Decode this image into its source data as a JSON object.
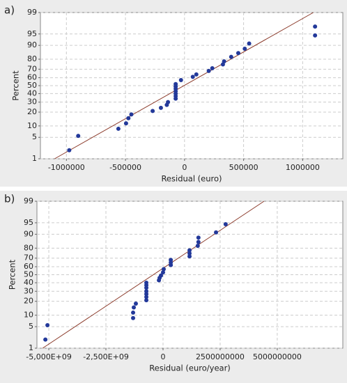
{
  "chart_data": [
    {
      "type": "scatter",
      "panel_label": "a)",
      "x_label": "Residual (euro)",
      "y_label": "Percent",
      "yscale": "probability",
      "grid": true,
      "color": "#23399a",
      "xlim": [
        -1220000,
        1340000
      ],
      "ylim": [
        1,
        99
      ],
      "xticks": [
        -1000000,
        -500000,
        0,
        500000,
        1000000
      ],
      "yticks": [
        1,
        5,
        10,
        20,
        30,
        40,
        50,
        60,
        70,
        80,
        90,
        95,
        99
      ],
      "x": [
        -976000,
        -900000,
        -560000,
        -495000,
        -475000,
        -450000,
        -270000,
        -200000,
        -150000,
        -140000,
        -75000,
        -75000,
        -75000,
        -75000,
        -75000,
        -75000,
        -75000,
        -30000,
        70000,
        100000,
        205000,
        235000,
        325000,
        335000,
        395000,
        455000,
        510000,
        547000,
        1105000,
        1105000
      ],
      "values": [
        2,
        5.5,
        8.5,
        11.5,
        15,
        18,
        21,
        24,
        27,
        30,
        34,
        37,
        40,
        43,
        46,
        49,
        52,
        57,
        61,
        64,
        68,
        71,
        75,
        78,
        82,
        85,
        88,
        91,
        94.5,
        97
      ],
      "fit_line": {
        "color": "#8b3a2a",
        "x": [
          -1100000,
          1090000
        ],
        "values": [
          1,
          99
        ]
      }
    },
    {
      "type": "scatter",
      "panel_label": "b)",
      "x_label": "Residual (euro/year)",
      "y_label": "Percent",
      "yscale": "probability",
      "grid": true,
      "color": "#23399a",
      "xlim": [
        -5520000000,
        7870000000
      ],
      "ylim": [
        1,
        99
      ],
      "xticks": [
        {
          "value": -5000000000,
          "label": "-5,000E+09"
        },
        {
          "value": -2500000000,
          "label": "-2,500E+09"
        },
        0,
        2500000000,
        5000000000
      ],
      "yticks": [
        1,
        5,
        10,
        20,
        30,
        40,
        50,
        60,
        70,
        80,
        90,
        95,
        99
      ],
      "x": [
        -5150000000,
        -5060000000,
        -1310000000,
        -1310000000,
        -1280000000,
        -1190000000,
        -730000000,
        -730000000,
        -730000000,
        -730000000,
        -730000000,
        -730000000,
        -730000000,
        -180000000,
        -150000000,
        -90000000,
        0,
        30000000,
        340000000,
        340000000,
        340000000,
        1160000000,
        1160000000,
        1160000000,
        1520000000,
        1550000000,
        1550000000,
        2320000000,
        2740000000
      ],
      "values": [
        2,
        5.5,
        8.5,
        11.5,
        15,
        18,
        21,
        24,
        27,
        30,
        34,
        37,
        40,
        43,
        46,
        49,
        53,
        57,
        62,
        65,
        68,
        72,
        75,
        78,
        82,
        85,
        88,
        91,
        94.5
      ],
      "fit_line": {
        "color": "#8b3a2a",
        "x": [
          -5270000000,
          4420000000
        ],
        "values": [
          1,
          99
        ]
      }
    }
  ]
}
